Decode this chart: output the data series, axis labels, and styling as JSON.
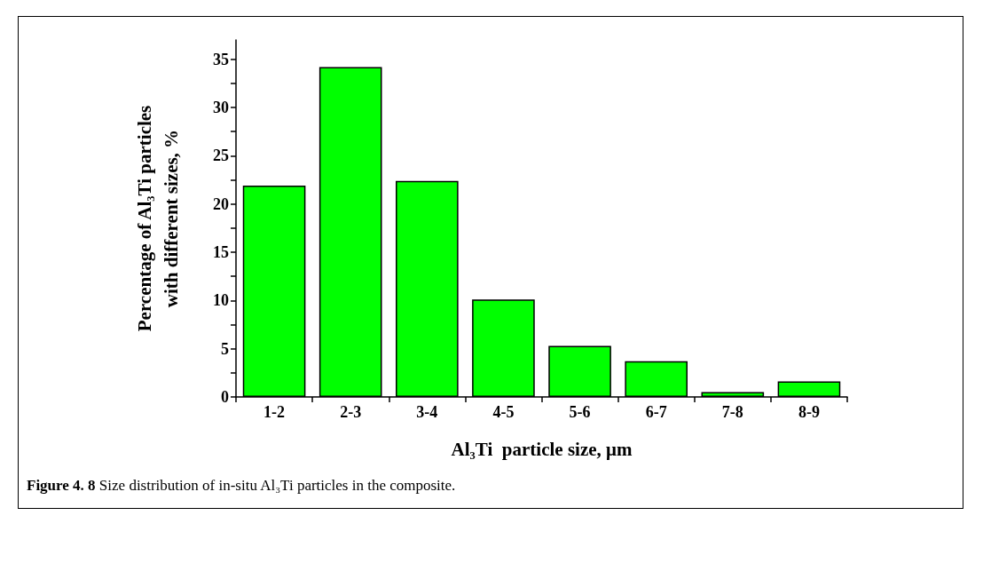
{
  "chart_data": {
    "type": "bar",
    "xlabel": "Al₃Ti  particle size, μm",
    "ylabel": "Percentage of Al₃Ti particles\nwith different sizes, %",
    "categories": [
      "1-2",
      "2-3",
      "3-4",
      "4-5",
      "5-6",
      "6-7",
      "7-8",
      "8-9"
    ],
    "values": [
      21.9,
      34.2,
      22.4,
      10.1,
      5.3,
      3.7,
      0.5,
      1.6
    ],
    "color": "#00ff00",
    "ylim": [
      0,
      37
    ],
    "yticks": [
      0,
      {
        "value": 2.5,
        "label": null
      },
      5,
      {
        "value": 7.5,
        "label": null
      },
      10,
      {
        "value": 12.5,
        "label": null
      },
      15,
      {
        "value": 17.5,
        "label": null
      },
      20,
      {
        "value": 22.5,
        "label": null
      },
      25,
      {
        "value": 27.5,
        "label": null
      },
      30,
      {
        "value": 32.5,
        "label": null
      },
      35
    ],
    "grid": false,
    "annotations": [
      "Figure 4. 8",
      "Size distribution of in-situ Al₃Ti particles in the composite."
    ]
  }
}
